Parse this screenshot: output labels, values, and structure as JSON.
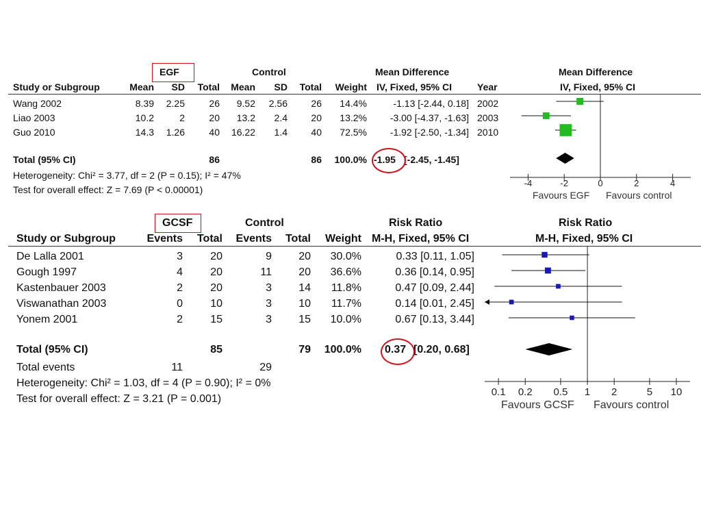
{
  "egf": {
    "group_labels": {
      "experimental": "EGF",
      "control": "Control",
      "effect_left": "Mean Difference",
      "effect_right": "Mean Difference"
    },
    "columns": [
      "Study or Subgroup",
      "Mean",
      "SD",
      "Total",
      "Mean",
      "SD",
      "Total",
      "Weight",
      "IV, Fixed, 95% CI",
      "Year",
      "IV, Fixed, 95% CI"
    ],
    "rows": [
      {
        "study": "Wang 2002",
        "m1": "8.39",
        "sd1": "2.25",
        "n1": "26",
        "m2": "9.52",
        "sd2": "2.56",
        "n2": "26",
        "weight": "14.4%",
        "ci": "-1.13 [-2.44, 0.18]",
        "year": "2002"
      },
      {
        "study": "Liao 2003",
        "m1": "10.2",
        "sd1": "2",
        "n1": "20",
        "m2": "13.2",
        "sd2": "2.4",
        "n2": "20",
        "weight": "13.2%",
        "ci": "-3.00 [-4.37, -1.63]",
        "year": "2003"
      },
      {
        "study": "Guo 2010",
        "m1": "14.3",
        "sd1": "1.26",
        "n1": "40",
        "m2": "16.22",
        "sd2": "1.4",
        "n2": "40",
        "weight": "72.5%",
        "ci": "-1.92 [-2.50, -1.34]",
        "year": "2010"
      }
    ],
    "total": {
      "label": "Total (95% CI)",
      "n1": "86",
      "n2": "86",
      "weight": "100.0%",
      "estimate": "-1.95",
      "ci": "[-2.45, -1.45]"
    },
    "heterogeneity": "Heterogeneity: Chi² = 3.77, df = 2 (P = 0.15); I² = 47%",
    "overall": "Test for overall effect: Z = 7.69 (P < 0.00001)",
    "axis_ticks": [
      "-4",
      "-2",
      "0",
      "2",
      "4"
    ],
    "favours_left": "Favours EGF",
    "favours_right": "Favours control"
  },
  "gcsf": {
    "group_labels": {
      "experimental": "GCSF",
      "control": "Control",
      "effect_left": "Risk Ratio",
      "effect_right": "Risk Ratio"
    },
    "columns": [
      "Study or Subgroup",
      "Events",
      "Total",
      "Events",
      "Total",
      "Weight",
      "M-H, Fixed, 95% CI",
      "M-H, Fixed, 95% CI"
    ],
    "rows": [
      {
        "study": "De Lalla 2001",
        "e1": "3",
        "n1": "20",
        "e2": "9",
        "n2": "20",
        "weight": "30.0%",
        "ci": "0.33 [0.11, 1.05]"
      },
      {
        "study": "Gough 1997",
        "e1": "4",
        "n1": "20",
        "e2": "11",
        "n2": "20",
        "weight": "36.6%",
        "ci": "0.36 [0.14, 0.95]"
      },
      {
        "study": "Kastenbauer 2003",
        "e1": "2",
        "n1": "20",
        "e2": "3",
        "n2": "14",
        "weight": "11.8%",
        "ci": "0.47 [0.09, 2.44]"
      },
      {
        "study": "Viswanathan 2003",
        "e1": "0",
        "n1": "10",
        "e2": "3",
        "n2": "10",
        "weight": "11.7%",
        "ci": "0.14 [0.01, 2.45]"
      },
      {
        "study": "Yonem 2001",
        "e1": "2",
        "n1": "15",
        "e2": "3",
        "n2": "15",
        "weight": "10.0%",
        "ci": "0.67 [0.13, 3.44]"
      }
    ],
    "total": {
      "label": "Total (95% CI)",
      "n1": "85",
      "n2": "79",
      "weight": "100.0%",
      "estimate": "0.37",
      "ci": "[0.20, 0.68]"
    },
    "total_events": {
      "label": "Total events",
      "e1": "11",
      "e2": "29"
    },
    "heterogeneity": "Heterogeneity: Chi² = 1.03, df = 4 (P = 0.90); I² = 0%",
    "overall": "Test for overall effect: Z = 3.21 (P = 0.001)",
    "axis_ticks": [
      "0.1",
      "0.2",
      "0.5",
      "1",
      "2",
      "5",
      "10"
    ],
    "favours_left": "Favours GCSF",
    "favours_right": "Favours control"
  },
  "chart_data": [
    {
      "type": "forest",
      "scale": "linear",
      "xlim": [
        -5,
        5
      ],
      "null_value": 0,
      "studies": [
        {
          "name": "Wang 2002",
          "estimate": -1.13,
          "lower": -2.44,
          "upper": 0.18,
          "weight": 14.4
        },
        {
          "name": "Liao 2003",
          "estimate": -3.0,
          "lower": -4.37,
          "upper": -1.63,
          "weight": 13.2
        },
        {
          "name": "Guo 2010",
          "estimate": -1.92,
          "lower": -2.5,
          "upper": -1.34,
          "weight": 72.5
        }
      ],
      "pooled": {
        "estimate": -1.95,
        "lower": -2.45,
        "upper": -1.45
      },
      "marker_color": "#22bb22"
    },
    {
      "type": "forest",
      "scale": "log",
      "xlim": [
        0.07,
        14
      ],
      "null_value": 1,
      "studies": [
        {
          "name": "De Lalla 2001",
          "estimate": 0.33,
          "lower": 0.11,
          "upper": 1.05,
          "weight": 30.0
        },
        {
          "name": "Gough 1997",
          "estimate": 0.36,
          "lower": 0.14,
          "upper": 0.95,
          "weight": 36.6
        },
        {
          "name": "Kastenbauer 2003",
          "estimate": 0.47,
          "lower": 0.09,
          "upper": 2.44,
          "weight": 11.8
        },
        {
          "name": "Viswanathan 2003",
          "estimate": 0.14,
          "lower": 0.01,
          "upper": 2.45,
          "weight": 11.7
        },
        {
          "name": "Yonem 2001",
          "estimate": 0.67,
          "lower": 0.13,
          "upper": 3.44,
          "weight": 10.0
        }
      ],
      "pooled": {
        "estimate": 0.37,
        "lower": 0.2,
        "upper": 0.68
      },
      "marker_color": "#1a1ab0"
    }
  ]
}
